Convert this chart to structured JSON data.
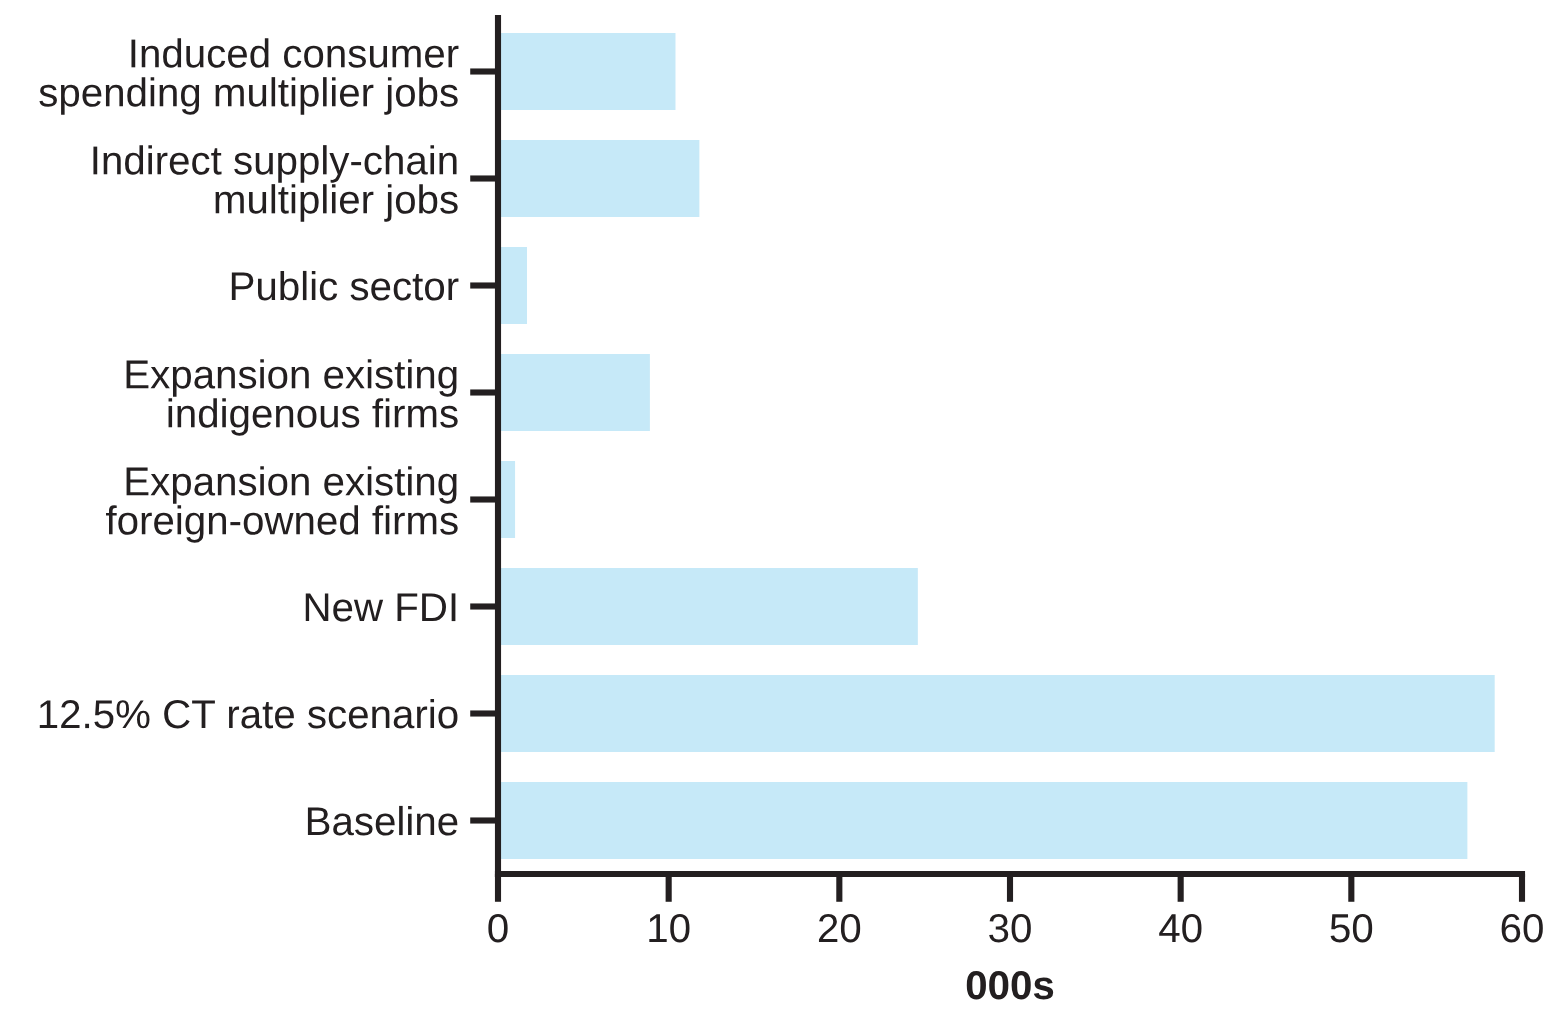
{
  "chart_data": {
    "type": "bar",
    "orientation": "horizontal",
    "categories": [
      "Induced consumer\nspending multiplier jobs",
      "Indirect supply-chain\nmultiplier jobs",
      "Public sector",
      "Expansion existing\nindigenous firms",
      "Expansion existing\nforeign-owned firms",
      "New FDI",
      "12.5% CT rate scenario",
      "Baseline"
    ],
    "values": [
      10.4,
      11.8,
      1.7,
      8.9,
      1.0,
      24.6,
      58.4,
      56.8
    ],
    "color": "#c6e9f8",
    "xlabel": "000s",
    "xlim": [
      0,
      60
    ],
    "xticks": [
      0,
      10,
      20,
      30,
      40,
      50,
      60
    ]
  }
}
